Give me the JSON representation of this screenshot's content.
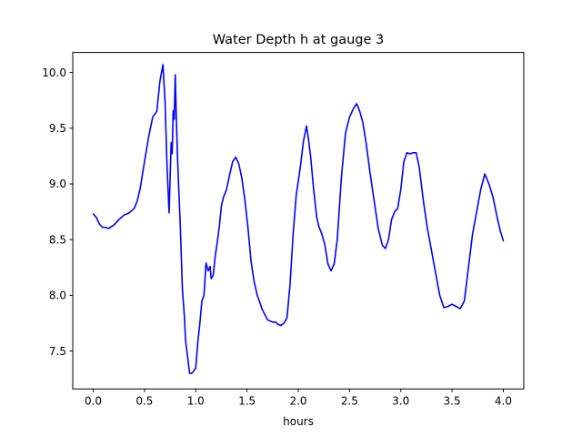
{
  "chart_data": {
    "type": "line",
    "title": "Water Depth h at gauge 3",
    "xlabel": "hours",
    "ylabel": "",
    "xlim": [
      -0.2,
      4.2
    ],
    "ylim": [
      7.16,
      10.18
    ],
    "xticks": [
      0.0,
      0.5,
      1.0,
      1.5,
      2.0,
      2.5,
      3.0,
      3.5,
      4.0
    ],
    "xtick_labels": [
      "0.0",
      "0.5",
      "1.0",
      "1.5",
      "2.0",
      "2.5",
      "3.0",
      "3.5",
      "4.0"
    ],
    "yticks": [
      7.5,
      8.0,
      8.5,
      9.0,
      9.5,
      10.0
    ],
    "ytick_labels": [
      "7.5",
      "8.0",
      "8.5",
      "9.0",
      "9.5",
      "10.0"
    ],
    "grid": false,
    "legend": "none",
    "series": [
      {
        "color": "#0000ff",
        "x": [
          0.0,
          0.03,
          0.06,
          0.09,
          0.12,
          0.15,
          0.2,
          0.25,
          0.3,
          0.35,
          0.4,
          0.43,
          0.46,
          0.5,
          0.54,
          0.58,
          0.62,
          0.65,
          0.68,
          0.7,
          0.72,
          0.74,
          0.76,
          0.77,
          0.78,
          0.79,
          0.8,
          0.81,
          0.82,
          0.83,
          0.85,
          0.87,
          0.89,
          0.9,
          0.92,
          0.94,
          0.96,
          0.98,
          1.0,
          1.02,
          1.04,
          1.06,
          1.08,
          1.1,
          1.12,
          1.14,
          1.15,
          1.17,
          1.19,
          1.21,
          1.23,
          1.25,
          1.27,
          1.3,
          1.33,
          1.36,
          1.39,
          1.42,
          1.45,
          1.48,
          1.51,
          1.54,
          1.57,
          1.6,
          1.65,
          1.7,
          1.75,
          1.78,
          1.8,
          1.83,
          1.86,
          1.89,
          1.92,
          1.95,
          1.98,
          2.02,
          2.05,
          2.08,
          2.1,
          2.12,
          2.15,
          2.18,
          2.2,
          2.23,
          2.26,
          2.29,
          2.32,
          2.35,
          2.38,
          2.42,
          2.46,
          2.5,
          2.54,
          2.57,
          2.6,
          2.63,
          2.66,
          2.7,
          2.74,
          2.78,
          2.82,
          2.85,
          2.88,
          2.91,
          2.94,
          2.97,
          3.0,
          3.03,
          3.06,
          3.09,
          3.12,
          3.15,
          3.18,
          3.22,
          3.26,
          3.3,
          3.34,
          3.38,
          3.42,
          3.46,
          3.5,
          3.54,
          3.58,
          3.62,
          3.66,
          3.7,
          3.74,
          3.78,
          3.82,
          3.86,
          3.9,
          3.94,
          3.97,
          4.0
        ],
        "y": [
          8.73,
          8.7,
          8.64,
          8.61,
          8.61,
          8.6,
          8.63,
          8.68,
          8.72,
          8.74,
          8.78,
          8.85,
          8.97,
          9.2,
          9.42,
          9.6,
          9.65,
          9.92,
          10.07,
          9.75,
          9.15,
          8.74,
          9.37,
          9.27,
          9.66,
          9.58,
          9.98,
          9.6,
          9.3,
          9.05,
          8.6,
          8.05,
          7.8,
          7.6,
          7.45,
          7.3,
          7.3,
          7.32,
          7.35,
          7.58,
          7.75,
          7.95,
          8.0,
          8.29,
          8.22,
          8.26,
          8.15,
          8.18,
          8.35,
          8.48,
          8.62,
          8.8,
          8.88,
          8.95,
          9.08,
          9.2,
          9.24,
          9.18,
          9.05,
          8.85,
          8.6,
          8.3,
          8.12,
          8.0,
          7.87,
          7.78,
          7.76,
          7.76,
          7.74,
          7.73,
          7.75,
          7.8,
          8.1,
          8.55,
          8.9,
          9.15,
          9.38,
          9.52,
          9.4,
          9.25,
          8.95,
          8.7,
          8.62,
          8.55,
          8.45,
          8.28,
          8.22,
          8.28,
          8.5,
          9.05,
          9.45,
          9.6,
          9.68,
          9.72,
          9.65,
          9.55,
          9.38,
          9.1,
          8.85,
          8.6,
          8.45,
          8.42,
          8.5,
          8.68,
          8.75,
          8.78,
          8.95,
          9.2,
          9.28,
          9.27,
          9.28,
          9.28,
          9.15,
          8.85,
          8.6,
          8.4,
          8.2,
          8.0,
          7.89,
          7.9,
          7.92,
          7.9,
          7.88,
          7.95,
          8.25,
          8.55,
          8.75,
          8.95,
          9.09,
          9.0,
          8.88,
          8.7,
          8.58,
          8.49
        ]
      }
    ]
  }
}
